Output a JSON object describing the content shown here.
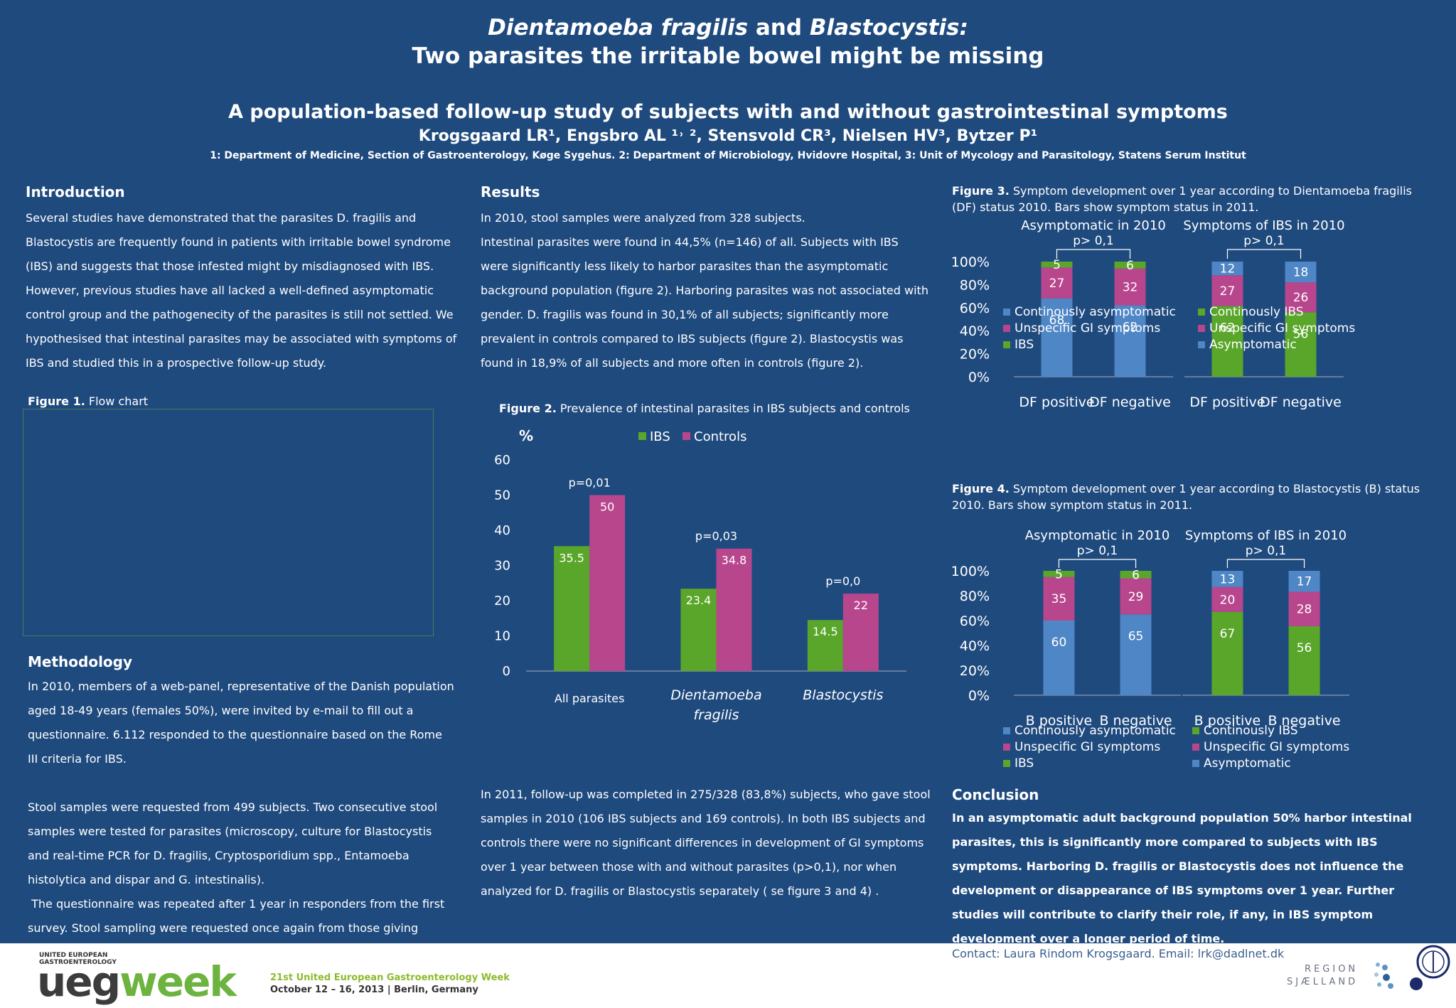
{
  "header": {
    "title_part1_italic": "Dientamoeba fragilis",
    "title_and": " and ",
    "title_part2_italic": "Blastocystis:",
    "title_line2": "Two parasites the irritable bowel might be missing",
    "subtitle": "A population-based follow-up study of subjects with and without gastrointestinal symptoms",
    "authors": "Krogsgaard LR¹, Engsbro AL ¹˒ ², Stensvold CR³, Nielsen HV³, Bytzer P¹",
    "affiliations": "1: Department of Medicine, Section of Gastroenterology, Køge Sygehus. 2: Department of Microbiology, Hvidovre Hospital, 3: Unit of Mycology and Parasitology, Statens Serum Institut"
  },
  "introduction": {
    "heading": "Introduction",
    "text": "Several studies have demonstrated that the parasites D. fragilis and Blastocystis are frequently found in patients with irritable bowel syndrome (IBS) and suggests that those infested might by misdiagnosed with IBS. However, previous studies have all lacked a well-defined asymptomatic control group and the pathogenecity of the parasites is still not settled. We hypothesised that intestinal parasites may be associated with symptoms of IBS and studied this in a prospective follow-up study."
  },
  "figure1": {
    "label": "Figure 1.",
    "caption": " Flow chart"
  },
  "methodology": {
    "heading": "Methodology",
    "p1": "In 2010, members of a web-panel, representative of the Danish population aged 18-49 years (females 50%), were invited by e-mail to fill out a questionnaire.  6.112 responded to the questionnaire based on the Rome III criteria for IBS.",
    "p2": "Stool samples were requested from 499 subjects. Two consecutive stool samples were tested for parasites (microscopy, culture for Blastocystis and real-time PCR for D. fragilis, Cryptosporidium spp., Entamoeba histolytica and dispar and G. intestinalis).",
    "p3": " The questionnaire was repeated after 1 year in responders from the first survey. Stool sampling were requested once again from those giving samples"
  },
  "results": {
    "heading": "Results",
    "p1": "In 2010, stool samples were analyzed from 328 subjects.",
    "p2": "Intestinal parasites were found in 44,5% (n=146) of all. Subjects with IBS were significantly less likely to harbor parasites than the asymptomatic background population (figure 2). Harboring parasites was not associated with gender. D. fragilis was found in 30,1% of all subjects; significantly more prevalent in controls compared to IBS subjects (figure 2). Blastocystis was found in 18,9% of all subjects and more often in controls (figure 2).",
    "p3": "In 2011, follow-up was completed in 275/328 (83,8%) subjects, who gave stool samples in 2010 (106 IBS subjects and 169 controls). In both IBS subjects and controls there were no significant differences in development of GI symptoms over 1 year between those with and without parasites (p>0,1), nor when analyzed for D. fragilis or Blastocystis separately ( se figure 3 and 4) ."
  },
  "figure2": {
    "label": "Figure 2.",
    "caption": " Prevalence of intestinal parasites in IBS subjects and controls"
  },
  "figure3": {
    "label": "Figure 3.",
    "caption": " Symptom development over 1 year according to Dientamoeba fragilis (DF) status 2010. Bars show symptom status in 2011."
  },
  "figure4": {
    "label": "Figure 4.",
    "caption": " Symptom development over 1 year according to Blastocystis (B) status 2010. Bars show symptom status in 2011."
  },
  "conclusion": {
    "heading": "Conclusion",
    "text": "In an asymptomatic adult background population 50% harbor intestinal parasites, this is significantly more compared to subjects with IBS symptoms. Harboring D. fragilis or Blastocystis does not influence the development or disappearance of IBS symptoms over 1 year. Further studies will contribute to clarify their role, if any, in IBS symptom development over a longer period of time."
  },
  "contact": "Contact: Laura Rindom Krogsgaard. Email: lrk@dadlnet.dk",
  "footer": {
    "ueg_small1": "UNITED EUROPEAN",
    "ueg_small2": "GASTROENTEROLOGY",
    "ueg": "ueg",
    "week": "week",
    "event_line1": "21st United European Gastroenterology Week",
    "event_line2": "October 12 – 16, 2013 | Berlin, Germany",
    "region1": "REGION",
    "region2": "SJÆLLAND"
  },
  "colors": {
    "background": "#1f4a7e",
    "green": "#5aa62a",
    "magenta": "#b8468d",
    "blue": "#4f86c6"
  },
  "chart_data": [
    {
      "type": "bar",
      "ylabel": "%",
      "ylim": [
        0,
        60
      ],
      "yticks": [
        "0",
        "10",
        "20",
        "30",
        "40",
        "50",
        "60"
      ],
      "categories": [
        "All parasites",
        "Dientamoeba fragilis",
        "Blastocystis"
      ],
      "series": [
        {
          "name": "IBS",
          "values": [
            35.5,
            23.4,
            14.5
          ]
        },
        {
          "name": "Controls",
          "values": [
            50,
            34.8,
            22
          ]
        }
      ],
      "value_labels": [
        "35.5",
        "23.4",
        "14.5",
        "50",
        "34.8",
        "22"
      ],
      "pvalues": [
        "p=0,01",
        "p=0,03",
        "p=0,0"
      ],
      "legend": [
        "IBS",
        "Controls"
      ]
    },
    {
      "type": "bar",
      "stacked": true,
      "yticks": [
        "0%",
        "20%",
        "40%",
        "60%",
        "80%",
        "100%"
      ],
      "groups": [
        {
          "title": "Asymptomatic in 2010",
          "pvalue": "p> 0,1",
          "categories": [
            "DF positive",
            "DF negative"
          ],
          "series": [
            {
              "name": "Continously asymptomatic",
              "values": [
                68,
                62
              ]
            },
            {
              "name": "Unspecific GI symptoms",
              "values": [
                27,
                32
              ]
            },
            {
              "name": "IBS",
              "values": [
                5,
                6
              ]
            }
          ]
        },
        {
          "title": "Symptoms of IBS in 2010",
          "pvalue": "p> 0,1",
          "categories": [
            "DF positive",
            "DF negative"
          ],
          "series": [
            {
              "name": "Continously IBS",
              "values": [
                62,
                56
              ]
            },
            {
              "name": "Unspecific GI symptoms",
              "values": [
                27,
                26
              ]
            },
            {
              "name": "Asymptomatic",
              "values": [
                12,
                18
              ]
            }
          ]
        }
      ],
      "legend_left": [
        "Continously asymptomatic",
        "Unspecific GI symptoms",
        "IBS"
      ],
      "legend_right": [
        "Continously IBS",
        "Unspecific GI symptoms",
        "Asymptomatic"
      ]
    },
    {
      "type": "bar",
      "stacked": true,
      "yticks": [
        "0%",
        "20%",
        "40%",
        "60%",
        "80%",
        "100%"
      ],
      "groups": [
        {
          "title": "Asymptomatic in 2010",
          "pvalue": "p> 0,1",
          "categories": [
            "B positive",
            "B negative"
          ],
          "series": [
            {
              "name": "Continously asymptomatic",
              "values": [
                60,
                65
              ]
            },
            {
              "name": "Unspecific GI symptoms",
              "values": [
                35,
                29
              ]
            },
            {
              "name": "IBS",
              "values": [
                5,
                6
              ]
            }
          ]
        },
        {
          "title": "Symptoms of IBS in 2010",
          "pvalue": "p> 0,1",
          "categories": [
            "B positive",
            "B negative"
          ],
          "series": [
            {
              "name": "Continously IBS",
              "values": [
                67,
                56
              ]
            },
            {
              "name": "Unspecific GI symptoms",
              "values": [
                20,
                28
              ]
            },
            {
              "name": "Asymptomatic",
              "values": [
                13,
                17
              ]
            }
          ]
        }
      ],
      "legend_left": [
        "Continously asymptomatic",
        "Unspecific GI symptoms",
        "IBS"
      ],
      "legend_right": [
        "Continously IBS",
        "Unspecific GI symptoms",
        "Asymptomatic"
      ]
    }
  ]
}
